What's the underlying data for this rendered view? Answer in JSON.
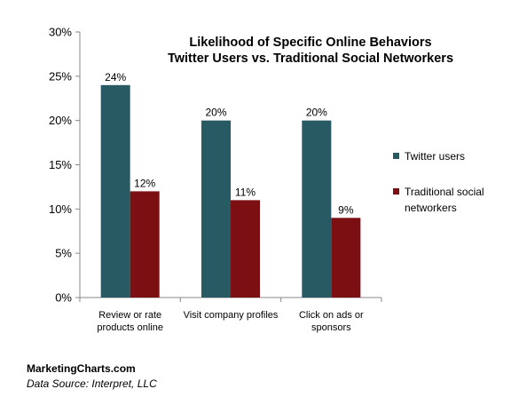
{
  "chart_data": {
    "type": "bar",
    "title": [
      "Likelihood of Specific Online Behaviors",
      "Twitter Users vs. Traditional Social Networkers"
    ],
    "categories": [
      [
        "Review or rate",
        "products online"
      ],
      [
        "Visit company profiles"
      ],
      [
        "Click on ads or",
        "sponsors"
      ]
    ],
    "series": [
      {
        "name": "Twitter users",
        "values": [
          24,
          20,
          20
        ],
        "labels": [
          "24%",
          "20%",
          "20%"
        ],
        "color": "#285a64"
      },
      {
        "name": [
          "Traditional social",
          "networkers"
        ],
        "values": [
          12,
          11,
          9
        ],
        "labels": [
          "12%",
          "11%",
          "9%"
        ],
        "color": "#7b0f12"
      }
    ],
    "ylim": [
      0,
      30
    ],
    "yticks": [
      0,
      5,
      10,
      15,
      20,
      25,
      30
    ],
    "ytick_labels": [
      "0%",
      "5%",
      "10%",
      "15%",
      "20%",
      "25%",
      "30%"
    ],
    "legend": "right",
    "grid": false
  },
  "footer": {
    "brand": "MarketingCharts.com",
    "source": "Data Source: Interpret, LLC"
  }
}
